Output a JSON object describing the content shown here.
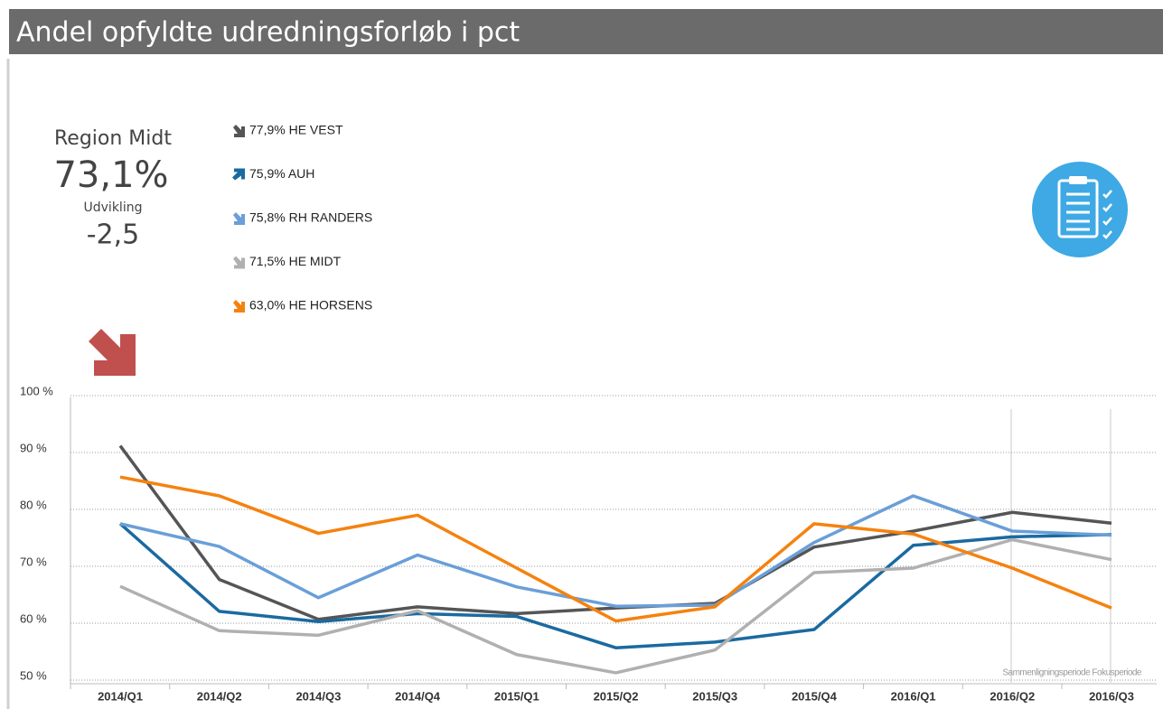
{
  "header": {
    "title": "Andel opfyldte udredningsforløb i pct"
  },
  "summary": {
    "region": "Region Midt",
    "value": "73,1%",
    "change_label": "Udvikling",
    "change": "-2,5",
    "arrow": "down"
  },
  "chart_data": {
    "type": "line",
    "categories": [
      "2014/Q1",
      "2014/Q2",
      "2014/Q3",
      "2014/Q4",
      "2015/Q1",
      "2015/Q2",
      "2015/Q3",
      "2015/Q4",
      "2016/Q1",
      "2016/Q2",
      "2016/Q3"
    ],
    "series": [
      {
        "name": "77,9% HE VEST",
        "color": "#555555",
        "arrow": "down",
        "values": [
          91.5,
          68,
          61,
          63.2,
          62,
          63,
          63.8,
          73.7,
          76.5,
          79.8,
          77.9
        ]
      },
      {
        "name": "75,9% AUH",
        "color": "#1a6aa0",
        "arrow": "up",
        "values": [
          77.8,
          62.4,
          60.6,
          62,
          61.5,
          56,
          57,
          59.2,
          74,
          75.5,
          75.9
        ]
      },
      {
        "name": "75,8% RH RANDERS",
        "color": "#6a9fd8",
        "arrow": "down",
        "values": [
          77.8,
          73.8,
          64.8,
          72.3,
          66.7,
          63.3,
          63.5,
          74.5,
          82.7,
          76.5,
          75.8
        ]
      },
      {
        "name": "71,5% HE MIDT",
        "color": "#b0b0b0",
        "arrow": "down",
        "values": [
          66.8,
          59,
          58.2,
          62.5,
          54.8,
          51.6,
          55.6,
          69.2,
          70,
          75,
          71.5
        ]
      },
      {
        "name": "63,0% HE HORSENS",
        "color": "#f5820f",
        "arrow": "down",
        "values": [
          86,
          82.7,
          76.1,
          79.3,
          70,
          60.7,
          63.2,
          77.8,
          76,
          70,
          63.0
        ]
      }
    ],
    "ylim": [
      50,
      100
    ],
    "yticks": [
      {
        "value": 50,
        "label": "50 %"
      },
      {
        "value": 60,
        "label": "60 %"
      },
      {
        "value": 70,
        "label": "70 %"
      },
      {
        "value": 80,
        "label": "80 %"
      },
      {
        "value": 90,
        "label": "90 %"
      },
      {
        "value": 100,
        "label": "100 %"
      }
    ],
    "grid": true,
    "annotation": "Sammenligningsperiode Fokusperiode"
  }
}
